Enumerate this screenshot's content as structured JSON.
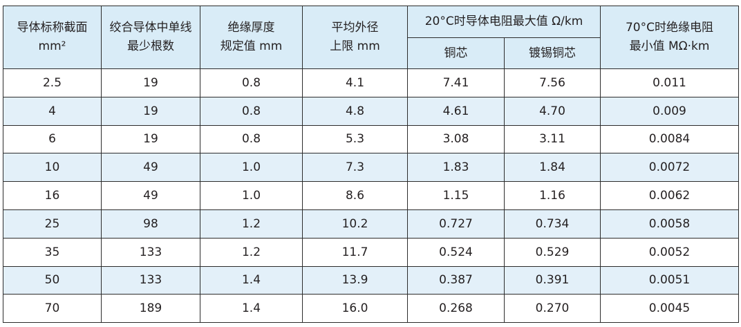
{
  "headers": {
    "cross_section": [
      "导体标称截面",
      "mm²"
    ],
    "strands": [
      "绞合导体中单线",
      "最少根数"
    ],
    "insulation": [
      "绝缘厚度",
      "规定值 mm"
    ],
    "outer_diameter": [
      "平均外径",
      "上限 mm"
    ],
    "resistance_group": "20°C时导体电阻最大值 Ω/km",
    "copper": "铜芯",
    "tinned_copper": "镀锡铜芯",
    "insulation_resistance": [
      "70°C时绝缘电阻",
      "最小值 MΩ·km"
    ]
  },
  "rows": [
    [
      "2.5",
      "19",
      "0.8",
      "4.1",
      "7.41",
      "7.56",
      "0.011"
    ],
    [
      "4",
      "19",
      "0.8",
      "4.8",
      "4.61",
      "4.70",
      "0.009"
    ],
    [
      "6",
      "19",
      "0.8",
      "5.3",
      "3.08",
      "3.11",
      "0.0084"
    ],
    [
      "10",
      "49",
      "1.0",
      "7.3",
      "1.83",
      "1.84",
      "0.0072"
    ],
    [
      "16",
      "49",
      "1.0",
      "8.6",
      "1.15",
      "1.16",
      "0.0062"
    ],
    [
      "25",
      "98",
      "1.2",
      "10.2",
      "0.727",
      "0.734",
      "0.0058"
    ],
    [
      "35",
      "133",
      "1.2",
      "11.7",
      "0.524",
      "0.529",
      "0.0052"
    ],
    [
      "50",
      "133",
      "1.4",
      "13.9",
      "0.387",
      "0.391",
      "0.0051"
    ],
    [
      "70",
      "189",
      "1.4",
      "16.0",
      "0.268",
      "0.270",
      "0.0045"
    ]
  ],
  "colors": {
    "header_bg": "#d9ecf7",
    "shaded_row_bg": "#e3f0f9",
    "border": "#2b2b2b"
  }
}
